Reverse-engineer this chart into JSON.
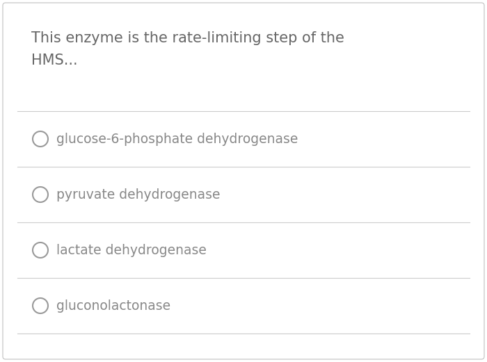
{
  "question_line1": "This enzyme is the rate-limiting step of the",
  "question_line2": "HMS...",
  "options": [
    "glucose-6-phosphate dehydrogenase",
    "pyruvate dehydrogenase",
    "lactate dehydrogenase",
    "gluconolactonase"
  ],
  "background_color": "#ffffff",
  "border_color": "#cccccc",
  "text_color": "#888888",
  "question_color": "#666666",
  "line_color": "#cccccc",
  "circle_edge_color": "#999999",
  "question_fontsize": 15,
  "option_fontsize": 13.5,
  "fig_width": 7.0,
  "fig_height": 5.21
}
